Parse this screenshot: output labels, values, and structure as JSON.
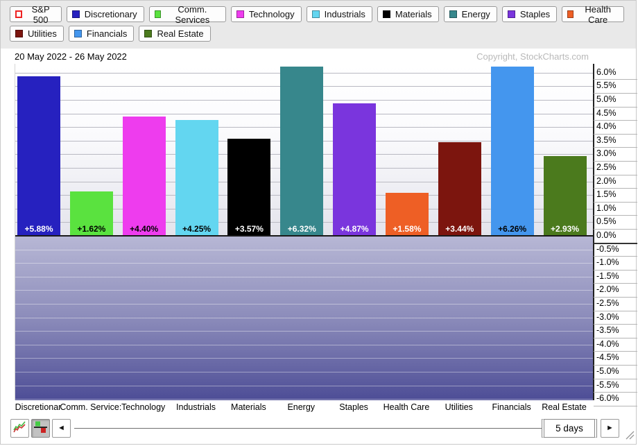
{
  "legend": {
    "rows": [
      [
        {
          "label": "S&P 500",
          "color": "#ffffff",
          "border": "#ee2222",
          "hollow": true
        },
        {
          "label": "Discretionary",
          "color": "#2621bf"
        },
        {
          "label": "Comm. Services",
          "color": "#5ae23f"
        },
        {
          "label": "Technology",
          "color": "#ee3cee"
        },
        {
          "label": "Industrials",
          "color": "#63d6f0"
        },
        {
          "label": "Materials",
          "color": "#000000"
        },
        {
          "label": "Energy",
          "color": "#37878c"
        },
        {
          "label": "Staples",
          "color": "#7a35dd"
        },
        {
          "label": "Health Care",
          "color": "#ee5f25"
        }
      ],
      [
        {
          "label": "Utilities",
          "color": "#7c150e"
        },
        {
          "label": "Financials",
          "color": "#4496ee"
        },
        {
          "label": "Real Estate",
          "color": "#4b7a1d"
        }
      ]
    ]
  },
  "header": {
    "date_range": "20 May 2022 - 26 May 2022",
    "copyright": "Copyright, StockCharts.com"
  },
  "chart_data": {
    "type": "bar",
    "title": "S&P Sector PerfChart, 20 May 2022 - 26 May 2022",
    "categories": [
      "Discretionary",
      "Comm. Services",
      "Technology",
      "Industrials",
      "Materials",
      "Energy",
      "Staples",
      "Health Care",
      "Utilities",
      "Financials",
      "Real Estate"
    ],
    "x_tick_labels": [
      "Discretionar",
      "Comm. Service:",
      "Technology",
      "Industrials",
      "Materials",
      "Energy",
      "Staples",
      "Health Care",
      "Utilities",
      "Financials",
      "Real Estate"
    ],
    "values": [
      5.88,
      1.62,
      4.4,
      4.25,
      3.57,
      6.32,
      4.87,
      1.58,
      3.44,
      6.26,
      2.93
    ],
    "bar_labels": [
      "+5.88%",
      "+1.62%",
      "+4.40%",
      "+4.25%",
      "+3.57%",
      "+6.32%",
      "+4.87%",
      "+1.58%",
      "+3.44%",
      "+6.26%",
      "+2.93%"
    ],
    "bar_colors": [
      "#2621bf",
      "#5ae23f",
      "#ee3cee",
      "#63d6f0",
      "#000000",
      "#37878c",
      "#7a35dd",
      "#ee5f25",
      "#7c150e",
      "#4496ee",
      "#4b7a1d"
    ],
    "bar_label_text_colors": [
      "#ffffff",
      "#000000",
      "#000000",
      "#000000",
      "#ffffff",
      "#ffffff",
      "#ffffff",
      "#ffffff",
      "#ffffff",
      "#000000",
      "#ffffff"
    ],
    "y_axis": {
      "max": 6.0,
      "min": -6.0,
      "step": 0.5,
      "suffix": "%"
    },
    "xlabel": "",
    "ylabel": "",
    "grid": true,
    "baseline": 0,
    "legend_position": "top",
    "negative_region_shaded": true
  },
  "toolbar": {
    "line_chart_view_icon": "line-chart-icon",
    "histogram_view_icon": "histogram-icon",
    "histogram_view_selected": true,
    "left_arrow": "◄",
    "right_arrow": "►",
    "period_label": "5 days"
  }
}
